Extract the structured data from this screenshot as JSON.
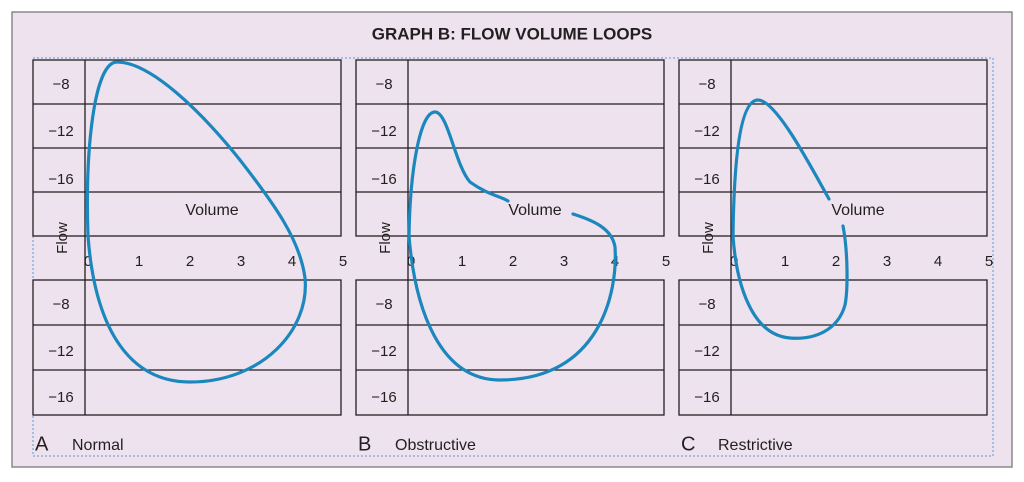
{
  "title": "GRAPH B: FLOW VOLUME LOOPS",
  "panels": [
    {
      "letter": "A",
      "label": "Normal",
      "y_axis_label": "Flow",
      "curve_label": "Volume",
      "x_ticks": [
        "0",
        "1",
        "2",
        "3",
        "4",
        "5"
      ],
      "y_ticks_top": [
        "−8",
        "−12",
        "−16"
      ],
      "y_ticks_bottom": [
        "−8",
        "−12",
        "−16"
      ]
    },
    {
      "letter": "B",
      "label": "Obstructive",
      "y_axis_label": "Flow",
      "curve_label": "Volume",
      "x_ticks": [
        "0",
        "1",
        "2",
        "3",
        "4",
        "5"
      ],
      "y_ticks_top": [
        "−8",
        "−12",
        "−16"
      ],
      "y_ticks_bottom": [
        "−8",
        "−12",
        "−16"
      ]
    },
    {
      "letter": "C",
      "label": "Restrictive",
      "y_axis_label": "Flow",
      "curve_label": "Volume",
      "x_ticks": [
        "0",
        "1",
        "2",
        "3",
        "4",
        "5"
      ],
      "y_ticks_top": [
        "−8",
        "−12",
        "−16"
      ],
      "y_ticks_bottom": [
        "−8",
        "−12",
        "−16"
      ]
    }
  ]
}
